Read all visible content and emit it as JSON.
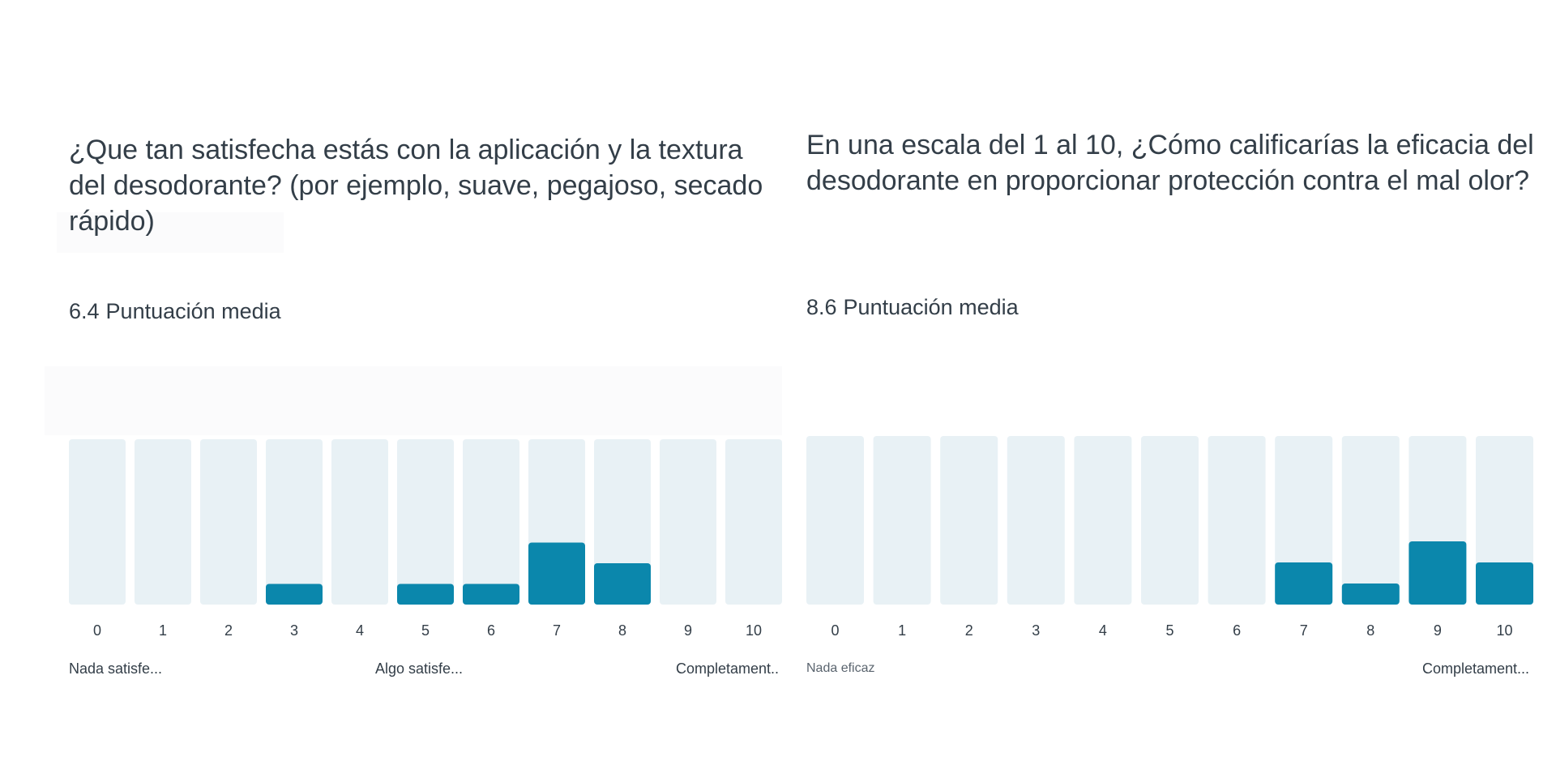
{
  "colors": {
    "track": "#e8f1f5",
    "fill": "#0b87ac",
    "text": "#333e48"
  },
  "chart_data": [
    {
      "type": "bar",
      "title": "¿Que tan satisfecha estás con la aplicación y la textura del desodorante? (por ejemplo, suave, pegajoso, secado rápido)",
      "average_value": "6.4",
      "average_label": "Puntuación media",
      "categories": [
        "0",
        "1",
        "2",
        "3",
        "4",
        "5",
        "6",
        "7",
        "8",
        "9",
        "10"
      ],
      "values": [
        0,
        0,
        0,
        1,
        0,
        1,
        1,
        3,
        2,
        0,
        0
      ],
      "ylim": [
        0,
        8
      ],
      "scale_labels": {
        "low": "Nada satisfe...",
        "mid": "Algo satisfe...",
        "high": "Completament.."
      }
    },
    {
      "type": "bar",
      "title": "En una escala del 1 al 10, ¿Cómo calificarías la eficacia del desodorante en proporcionar protección contra el mal olor?",
      "average_value": "8.6",
      "average_label": "Puntuación media",
      "categories": [
        "0",
        "1",
        "2",
        "3",
        "4",
        "5",
        "6",
        "7",
        "8",
        "9",
        "10"
      ],
      "values": [
        0,
        0,
        0,
        0,
        0,
        0,
        0,
        2,
        1,
        3,
        2
      ],
      "ylim": [
        0,
        8
      ],
      "scale_labels": {
        "low": "Nada eficaz",
        "high": "Completament..."
      }
    }
  ]
}
